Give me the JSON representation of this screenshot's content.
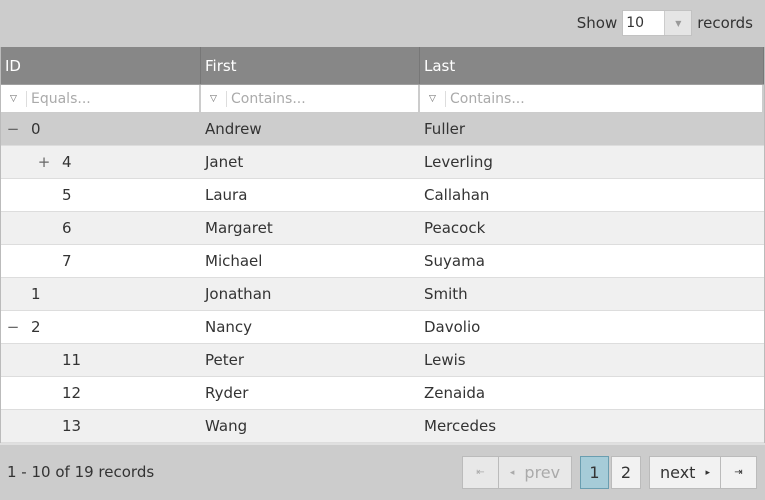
{
  "toolbar": {
    "show_label": "Show",
    "page_size": "10",
    "records_label": "records"
  },
  "columns": [
    {
      "label": "ID",
      "filter_placeholder": "Equals..."
    },
    {
      "label": "First",
      "filter_placeholder": "Contains..."
    },
    {
      "label": "Last",
      "filter_placeholder": "Contains..."
    }
  ],
  "rows": [
    {
      "id": "0",
      "first": "Andrew",
      "last": "Fuller",
      "level": 0,
      "toggle": "−"
    },
    {
      "id": "4",
      "first": "Janet",
      "last": "Leverling",
      "level": 1,
      "toggle": "+"
    },
    {
      "id": "5",
      "first": "Laura",
      "last": "Callahan",
      "level": 1,
      "toggle": ""
    },
    {
      "id": "6",
      "first": "Margaret",
      "last": "Peacock",
      "level": 1,
      "toggle": ""
    },
    {
      "id": "7",
      "first": "Michael",
      "last": "Suyama",
      "level": 1,
      "toggle": ""
    },
    {
      "id": "1",
      "first": "Jonathan",
      "last": "Smith",
      "level": 0,
      "toggle": ""
    },
    {
      "id": "2",
      "first": "Nancy",
      "last": "Davolio",
      "level": 0,
      "toggle": "−"
    },
    {
      "id": "11",
      "first": "Peter",
      "last": "Lewis",
      "level": 1,
      "toggle": ""
    },
    {
      "id": "12",
      "first": "Ryder",
      "last": "Zenaida",
      "level": 1,
      "toggle": ""
    },
    {
      "id": "13",
      "first": "Wang",
      "last": "Mercedes",
      "level": 1,
      "toggle": ""
    }
  ],
  "pager": {
    "summary": "1 - 10 of 19 records",
    "first_icon": "⇤",
    "prev_label": "prev",
    "prev_icon": "◂",
    "pages": [
      "1",
      "2"
    ],
    "current_page": "1",
    "next_label": "next",
    "next_icon": "▸",
    "last_icon": "⇥"
  }
}
